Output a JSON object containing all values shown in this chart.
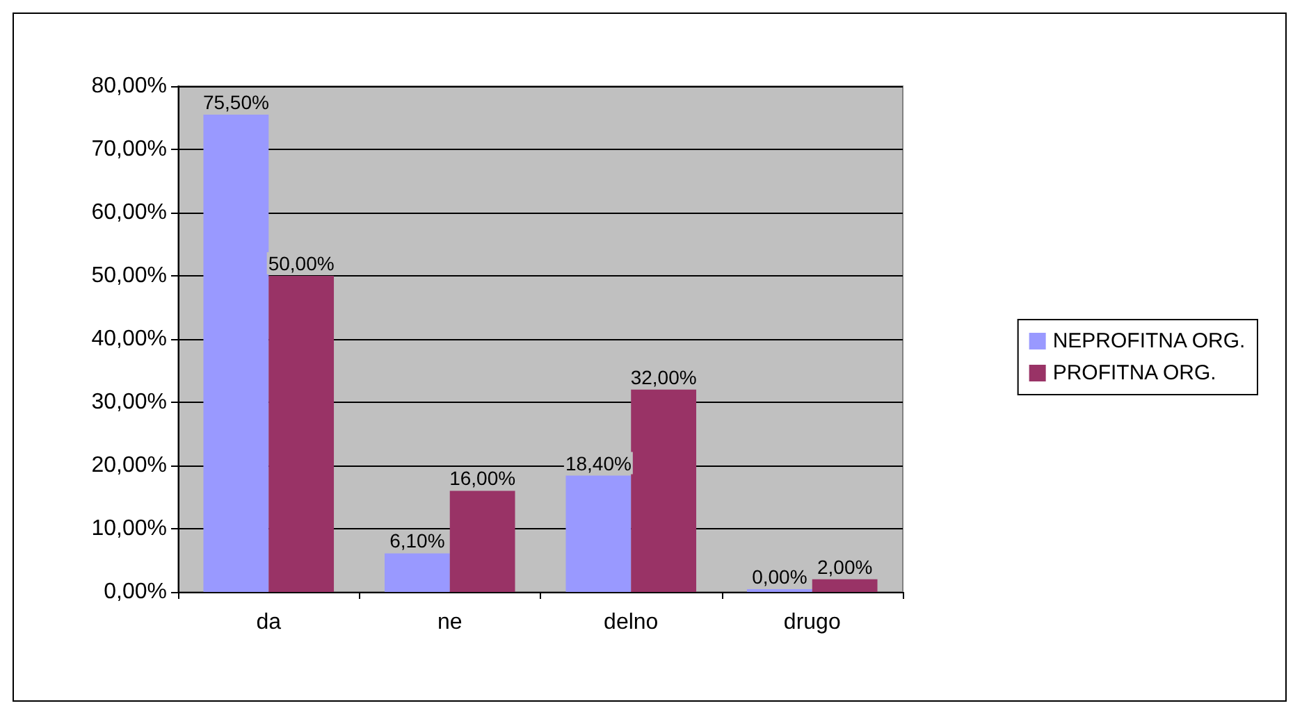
{
  "chart_data": {
    "type": "bar",
    "categories": [
      "da",
      "ne",
      "delno",
      "drugo"
    ],
    "series": [
      {
        "name": "NEPROFITNA ORG.",
        "color": "#9999ff",
        "values": [
          75.5,
          6.1,
          18.4,
          0
        ],
        "value_labels": [
          "75,50%",
          "6,10%",
          "18,40%",
          "0,00%"
        ]
      },
      {
        "name": "PROFITNA ORG.",
        "color": "#993366",
        "values": [
          50,
          16,
          32,
          2
        ],
        "value_labels": [
          "50,00%",
          "16,00%",
          "32,00%",
          "2,00%"
        ]
      }
    ],
    "ylim": [
      0,
      80
    ],
    "yticks": [
      {
        "value": 0,
        "label": "0,00%"
      },
      {
        "value": 10,
        "label": "10,00%"
      },
      {
        "value": 20,
        "label": "20,00%"
      },
      {
        "value": 30,
        "label": "30,00%"
      },
      {
        "value": 40,
        "label": "40,00%"
      },
      {
        "value": 50,
        "label": "50,00%"
      },
      {
        "value": 60,
        "label": "60,00%"
      },
      {
        "value": 70,
        "label": "70,00%"
      },
      {
        "value": 80,
        "label": "80,00%"
      }
    ],
    "grid": "y",
    "legend": "right"
  }
}
